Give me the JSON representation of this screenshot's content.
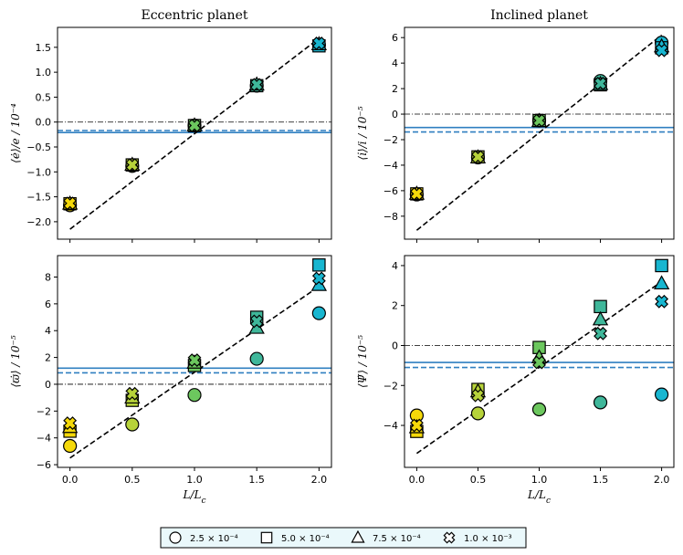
{
  "chart_data": [
    {
      "type": "scatter",
      "title": "Eccentric planet",
      "xlabel": "L/L_c",
      "ylabel": "⟨ė⟩/e / 10⁻⁴",
      "xlim": [
        -0.1,
        2.1
      ],
      "ylim": [
        -2.35,
        1.9
      ],
      "xticks": [
        0.0,
        0.5,
        1.0,
        1.5,
        2.0
      ],
      "xtick_labels": [
        "0.0",
        "0.5",
        "1.0",
        "1.5",
        "2.0"
      ],
      "xticks_labeled": false,
      "yticks": [
        -2.0,
        -1.5,
        -1.0,
        -0.5,
        0.0,
        0.5,
        1.0,
        1.5
      ],
      "ytick_labels": [
        "−2.0",
        "−1.5",
        "−1.0",
        "−0.5",
        "0.0",
        "0.5",
        "1.0",
        "1.5"
      ],
      "zero_line": 0.0,
      "hline_solid": -0.21,
      "hline_dashed": -0.17,
      "fit_line": {
        "x": [
          0.0,
          2.0
        ],
        "y": [
          -2.15,
          1.68
        ]
      },
      "series": [
        {
          "name": "2.5 × 10⁻⁴",
          "marker": "circle",
          "x": [
            0.0,
            0.5,
            1.0,
            1.5,
            2.0
          ],
          "y": [
            -1.67,
            -0.88,
            -0.07,
            0.73,
            1.55
          ]
        },
        {
          "name": "5.0 × 10⁻⁴",
          "marker": "square",
          "x": [
            0.0,
            0.5,
            1.0,
            1.5,
            2.0
          ],
          "y": [
            -1.64,
            -0.86,
            -0.07,
            0.73,
            1.53
          ]
        },
        {
          "name": "7.5 × 10⁻⁴",
          "marker": "triangle",
          "x": [
            0.0,
            0.5,
            1.0,
            1.5,
            2.0
          ],
          "y": [
            -1.64,
            -0.86,
            -0.07,
            0.75,
            1.56
          ]
        },
        {
          "name": "1.0 × 10⁻³",
          "marker": "x",
          "x": [
            0.0,
            0.5,
            1.0,
            1.5,
            2.0
          ],
          "y": [
            -1.63,
            -0.86,
            -0.07,
            0.75,
            1.58
          ]
        }
      ]
    },
    {
      "type": "scatter",
      "title": "Inclined planet",
      "xlabel": "L/L_c",
      "ylabel": "⟨i̇⟩/i / 10⁻⁵",
      "xlim": [
        -0.1,
        2.1
      ],
      "ylim": [
        -9.8,
        6.8
      ],
      "xticks": [
        0.0,
        0.5,
        1.0,
        1.5,
        2.0
      ],
      "xtick_labels": [
        "0.0",
        "0.5",
        "1.0",
        "1.5",
        "2.0"
      ],
      "xticks_labeled": false,
      "yticks": [
        -8,
        -6,
        -4,
        -2,
        0,
        2,
        4,
        6
      ],
      "ytick_labels": [
        "−8",
        "−6",
        "−4",
        "−2",
        "0",
        "2",
        "4",
        "6"
      ],
      "zero_line": 0.0,
      "hline_solid": -1.05,
      "hline_dashed": -1.4,
      "fit_line": {
        "x": [
          0.0,
          2.0
        ],
        "y": [
          -9.1,
          6.2
        ]
      },
      "series": [
        {
          "name": "2.5 × 10⁻⁴",
          "marker": "circle",
          "x": [
            0.0,
            0.5,
            1.0,
            1.5,
            2.0
          ],
          "y": [
            -6.3,
            -3.4,
            -0.5,
            2.6,
            5.6
          ]
        },
        {
          "name": "5.0 × 10⁻⁴",
          "marker": "square",
          "x": [
            0.0,
            0.5,
            1.0,
            1.5,
            2.0
          ],
          "y": [
            -6.25,
            -3.35,
            -0.5,
            2.3,
            5.2
          ]
        },
        {
          "name": "7.5 × 10⁻⁴",
          "marker": "triangle",
          "x": [
            0.0,
            0.5,
            1.0,
            1.5,
            2.0
          ],
          "y": [
            -6.25,
            -3.4,
            -0.55,
            2.35,
            5.3
          ]
        },
        {
          "name": "1.0 × 10⁻³",
          "marker": "x",
          "x": [
            0.0,
            0.5,
            1.0,
            1.5,
            2.0
          ],
          "y": [
            -6.25,
            -3.35,
            -0.5,
            2.4,
            5.0
          ]
        }
      ]
    },
    {
      "type": "scatter",
      "title": "",
      "xlabel": "L/L_c",
      "ylabel": "⟨ϖ̇⟩ / 10⁻⁵",
      "xlim": [
        -0.1,
        2.1
      ],
      "ylim": [
        -6.2,
        9.6
      ],
      "xticks": [
        0.0,
        0.5,
        1.0,
        1.5,
        2.0
      ],
      "xtick_labels": [
        "0.0",
        "0.5",
        "1.0",
        "1.5",
        "2.0"
      ],
      "xticks_labeled": true,
      "yticks": [
        -6,
        -4,
        -2,
        0,
        2,
        4,
        6,
        8
      ],
      "ytick_labels": [
        "−6",
        "−4",
        "−2",
        "0",
        "2",
        "4",
        "6",
        "8"
      ],
      "zero_line": 0.0,
      "hline_solid": 1.2,
      "hline_dashed": 0.85,
      "fit_line": {
        "x": [
          0.0,
          2.0
        ],
        "y": [
          -5.5,
          7.3
        ]
      },
      "series": [
        {
          "name": "2.5 × 10⁻⁴",
          "marker": "circle",
          "x": [
            0.0,
            0.5,
            1.0,
            1.5,
            2.0
          ],
          "y": [
            -4.6,
            -3.0,
            -0.8,
            1.9,
            5.3
          ]
        },
        {
          "name": "5.0 × 10⁻⁴",
          "marker": "square",
          "x": [
            0.0,
            0.5,
            1.0,
            1.5,
            2.0
          ],
          "y": [
            -3.5,
            -1.2,
            1.4,
            5.0,
            8.9
          ]
        },
        {
          "name": "7.5 × 10⁻⁴",
          "marker": "triangle",
          "x": [
            0.0,
            0.5,
            1.0,
            1.5,
            2.0
          ],
          "y": [
            -3.2,
            -1.0,
            1.6,
            4.2,
            7.4
          ]
        },
        {
          "name": "1.0 × 10⁻³",
          "marker": "x",
          "x": [
            0.0,
            0.5,
            1.0,
            1.5,
            2.0
          ],
          "y": [
            -2.9,
            -0.7,
            1.8,
            4.7,
            7.9
          ]
        }
      ]
    },
    {
      "type": "scatter",
      "title": "",
      "xlabel": "L/L_c",
      "ylabel": "⟨Ψ̇⟩ / 10⁻⁵",
      "xlim": [
        -0.1,
        2.1
      ],
      "ylim": [
        -6.1,
        4.5
      ],
      "xticks": [
        0.0,
        0.5,
        1.0,
        1.5,
        2.0
      ],
      "xtick_labels": [
        "0.0",
        "0.5",
        "1.0",
        "1.5",
        "2.0"
      ],
      "xticks_labeled": true,
      "yticks": [
        -4,
        -2,
        0,
        2,
        4
      ],
      "ytick_labels": [
        "−4",
        "−2",
        "0",
        "2",
        "4"
      ],
      "zero_line": 0.0,
      "hline_solid": -0.85,
      "hline_dashed": -1.1,
      "fit_line": {
        "x": [
          0.0,
          2.0
        ],
        "y": [
          -5.4,
          3.2
        ]
      },
      "series": [
        {
          "name": "2.5 × 10⁻⁴",
          "marker": "circle",
          "x": [
            0.0,
            0.5,
            1.0,
            1.5,
            2.0
          ],
          "y": [
            -3.5,
            -3.4,
            -3.2,
            -2.85,
            -2.45
          ]
        },
        {
          "name": "5.0 × 10⁻⁴",
          "marker": "square",
          "x": [
            0.0,
            0.5,
            1.0,
            1.5,
            2.0
          ],
          "y": [
            -4.3,
            -2.2,
            -0.1,
            1.95,
            4.0
          ]
        },
        {
          "name": "7.5 × 10⁻⁴",
          "marker": "triangle",
          "x": [
            0.0,
            0.5,
            1.0,
            1.5,
            2.0
          ],
          "y": [
            -4.1,
            -2.3,
            -0.6,
            1.3,
            3.1
          ]
        },
        {
          "name": "1.0 × 10⁻³",
          "marker": "x",
          "x": [
            0.0,
            0.5,
            1.0,
            1.5,
            2.0
          ],
          "y": [
            -4.0,
            -2.5,
            -0.85,
            0.6,
            2.2
          ]
        }
      ]
    }
  ],
  "colors": {
    "x_colors": [
      "#f5d90a",
      "#b7d33a",
      "#6cc75e",
      "#3fb79a",
      "#18b6d0"
    ],
    "hline_color": "#2f7fc0",
    "fit_line_color": "#000000",
    "zero_line_color": "#000000"
  },
  "legend": {
    "placement": "bottom-center",
    "items": [
      {
        "label": "2.5 × 10⁻⁴",
        "marker": "circle"
      },
      {
        "label": "5.0 × 10⁻⁴",
        "marker": "square"
      },
      {
        "label": "7.5 × 10⁻⁴",
        "marker": "triangle"
      },
      {
        "label": "1.0 × 10⁻³",
        "marker": "x"
      }
    ]
  }
}
